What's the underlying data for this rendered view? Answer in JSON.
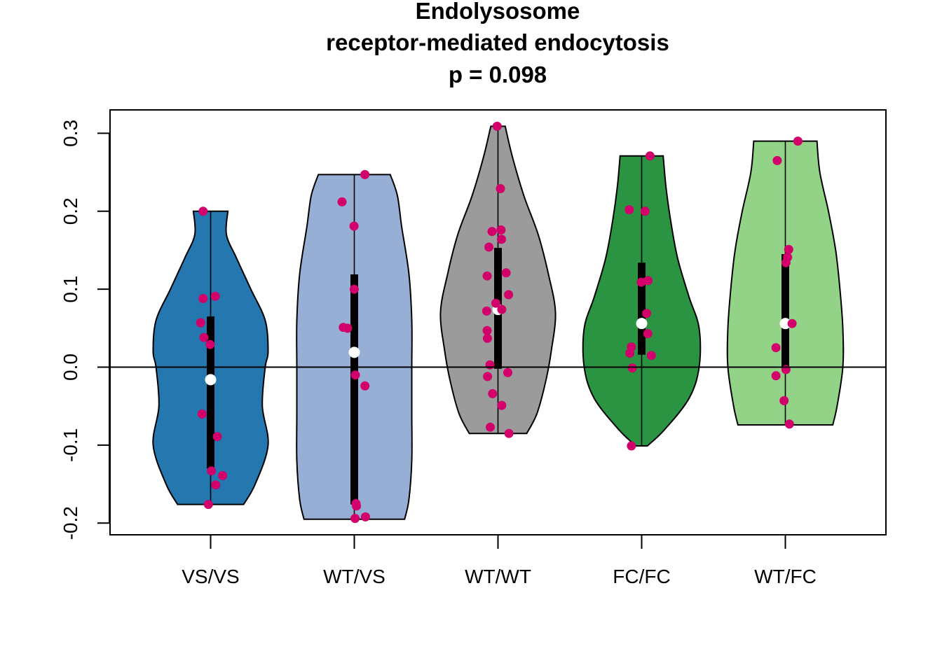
{
  "chart_data": {
    "type": "violin",
    "title_lines": [
      "Endolysosome",
      "receptor-mediated endocytosis",
      "p = 0.098"
    ],
    "xlabel": "",
    "ylabel": "",
    "ylim": [
      -0.215,
      0.33
    ],
    "yticks": [
      -0.2,
      -0.1,
      0.0,
      0.1,
      0.2,
      0.3
    ],
    "ytick_labels": [
      "-0.2",
      "-0.1",
      "0.0",
      "0.1",
      "0.2",
      "0.3"
    ],
    "reference_line": 0.0,
    "point_color": "#d1006a",
    "median_color": "#ffffff",
    "groups": [
      {
        "label": "VS/VS",
        "color": "#2577b0",
        "min": -0.176,
        "max": 0.2,
        "q1": -0.13,
        "q3": 0.065,
        "median": -0.016,
        "density_y": [
          -0.176,
          -0.15,
          -0.1,
          -0.05,
          0.0,
          0.02,
          0.06,
          0.1,
          0.14,
          0.17,
          0.2
        ],
        "density_hw": [
          0.23,
          0.31,
          0.4,
          0.36,
          0.38,
          0.4,
          0.38,
          0.28,
          0.18,
          0.11,
          0.12
        ],
        "points": [
          0.2,
          0.091,
          0.088,
          0.057,
          0.038,
          0.029,
          -0.06,
          -0.089,
          -0.133,
          -0.139,
          -0.151,
          -0.176
        ]
      },
      {
        "label": "WT/VS",
        "color": "#97afd5",
        "min": -0.195,
        "max": 0.247,
        "q1": -0.176,
        "q3": 0.119,
        "median": 0.019,
        "density_y": [
          -0.195,
          -0.17,
          -0.12,
          -0.06,
          0.0,
          0.06,
          0.12,
          0.18,
          0.22,
          0.247
        ],
        "density_hw": [
          0.35,
          0.38,
          0.4,
          0.4,
          0.4,
          0.4,
          0.38,
          0.33,
          0.3,
          0.25
        ],
        "points": [
          0.247,
          0.212,
          0.181,
          0.1,
          0.051,
          0.05,
          -0.01,
          -0.024,
          -0.175,
          -0.178,
          -0.192,
          -0.194
        ]
      },
      {
        "label": "WT/WT",
        "color": "#9b9b9b",
        "min": -0.085,
        "max": 0.309,
        "q1": -0.002,
        "q3": 0.153,
        "median": 0.074,
        "density_y": [
          -0.085,
          -0.06,
          -0.02,
          0.02,
          0.07,
          0.12,
          0.17,
          0.22,
          0.27,
          0.309
        ],
        "density_hw": [
          0.2,
          0.27,
          0.33,
          0.37,
          0.4,
          0.35,
          0.28,
          0.18,
          0.1,
          0.05
        ],
        "points": [
          0.309,
          0.229,
          0.176,
          0.174,
          0.164,
          0.154,
          0.121,
          0.117,
          0.093,
          0.082,
          0.074,
          0.072,
          0.047,
          0.037,
          0.003,
          -0.007,
          -0.012,
          -0.034,
          -0.049,
          -0.077,
          -0.085
        ]
      },
      {
        "label": "FC/FC",
        "color": "#2a9443",
        "min": -0.101,
        "max": 0.271,
        "q1": 0.016,
        "q3": 0.134,
        "median": 0.056,
        "density_y": [
          -0.101,
          -0.08,
          -0.04,
          0.0,
          0.05,
          0.09,
          0.14,
          0.19,
          0.23,
          0.271
        ],
        "density_hw": [
          0.04,
          0.16,
          0.33,
          0.4,
          0.4,
          0.33,
          0.25,
          0.2,
          0.17,
          0.15
        ],
        "points": [
          0.271,
          0.202,
          0.2,
          0.111,
          0.109,
          0.069,
          0.043,
          0.026,
          0.018,
          0.015,
          -0.001,
          -0.101
        ]
      },
      {
        "label": "WT/FC",
        "color": "#92d387",
        "min": -0.074,
        "max": 0.29,
        "q1": -0.002,
        "q3": 0.145,
        "median": 0.056,
        "density_y": [
          -0.074,
          -0.05,
          0.0,
          0.05,
          0.1,
          0.15,
          0.2,
          0.25,
          0.29
        ],
        "density_hw": [
          0.33,
          0.36,
          0.4,
          0.4,
          0.38,
          0.35,
          0.3,
          0.24,
          0.22
        ],
        "points": [
          0.29,
          0.265,
          0.151,
          0.141,
          0.134,
          0.056,
          0.025,
          -0.003,
          -0.011,
          -0.043,
          -0.073
        ]
      }
    ]
  }
}
